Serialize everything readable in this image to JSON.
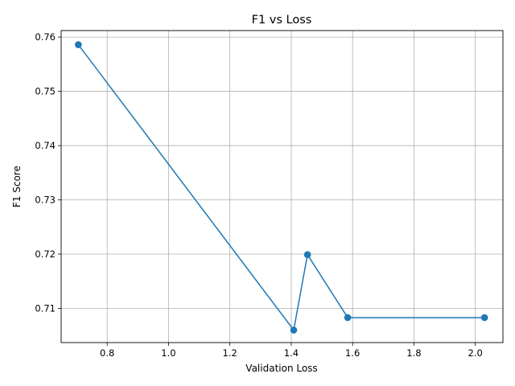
{
  "chart_data": {
    "type": "line",
    "title": "F1 vs Loss",
    "xlabel": "Validation Loss",
    "ylabel": "F1 Score",
    "xlim": [
      0.65,
      2.09
    ],
    "ylim": [
      0.7037,
      0.7612
    ],
    "xticks": [
      0.8,
      1.0,
      1.2,
      1.4,
      1.6,
      1.8,
      2.0
    ],
    "xtick_labels": [
      "0.8",
      "1.0",
      "1.2",
      "1.4",
      "1.6",
      "1.8",
      "2.0"
    ],
    "yticks": [
      0.71,
      0.72,
      0.73,
      0.74,
      0.75,
      0.76
    ],
    "ytick_labels": [
      "0.71",
      "0.72",
      "0.73",
      "0.74",
      "0.75",
      "0.76"
    ],
    "grid": true,
    "marker": "circle",
    "color": "#1f77b4",
    "series": [
      {
        "x": [
          0.706,
          1.408,
          1.453,
          1.584,
          2.03
        ],
        "y": [
          0.7586,
          0.706,
          0.7199,
          0.7083,
          0.7083
        ]
      }
    ]
  }
}
